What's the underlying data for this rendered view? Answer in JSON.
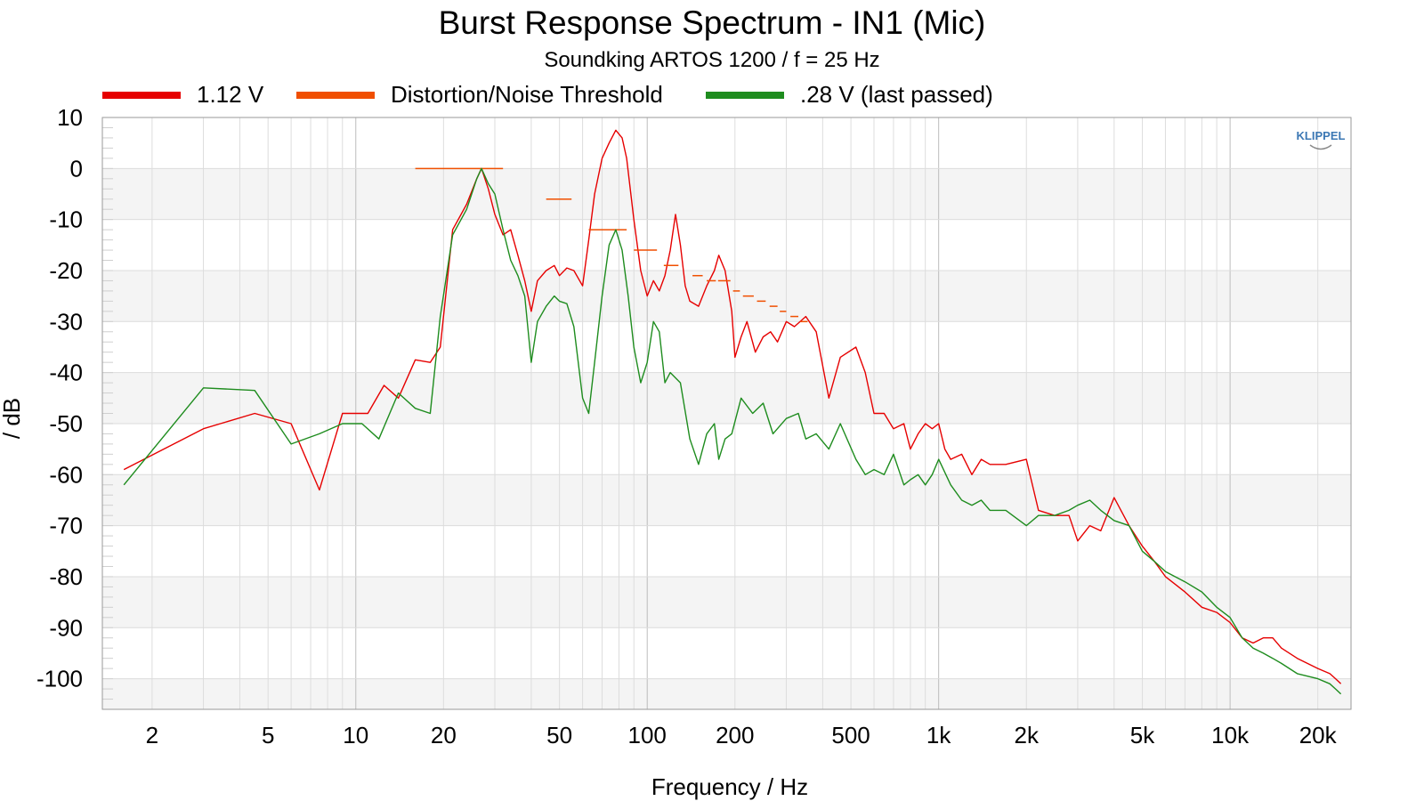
{
  "chart_data": {
    "type": "line",
    "title": "Burst Response Spectrum - IN1 (Mic)",
    "subtitle": "Soundking ARTOS 1200 / f = 25 Hz",
    "xlabel": "Frequency / Hz",
    "ylabel": "/ dB",
    "xscale": "log",
    "xlim": [
      1.35,
      26000
    ],
    "ylim": [
      -106,
      10
    ],
    "grid": true,
    "legend_position": "top",
    "logo_text": "KLIPPEL",
    "x_ticks": [
      {
        "value": 2,
        "label": "2"
      },
      {
        "value": 5,
        "label": "5"
      },
      {
        "value": 10,
        "label": "10"
      },
      {
        "value": 20,
        "label": "20"
      },
      {
        "value": 50,
        "label": "50"
      },
      {
        "value": 100,
        "label": "100"
      },
      {
        "value": 200,
        "label": "200"
      },
      {
        "value": 500,
        "label": "500"
      },
      {
        "value": 1000,
        "label": "1k"
      },
      {
        "value": 2000,
        "label": "2k"
      },
      {
        "value": 5000,
        "label": "5k"
      },
      {
        "value": 10000,
        "label": "10k"
      },
      {
        "value": 20000,
        "label": "20k"
      }
    ],
    "y_ticks": [
      {
        "value": 10,
        "label": "10"
      },
      {
        "value": 0,
        "label": "0"
      },
      {
        "value": -10,
        "label": "-10"
      },
      {
        "value": -20,
        "label": "-20"
      },
      {
        "value": -30,
        "label": "-30"
      },
      {
        "value": -40,
        "label": "-40"
      },
      {
        "value": -50,
        "label": "-50"
      },
      {
        "value": -60,
        "label": "-60"
      },
      {
        "value": -70,
        "label": "-70"
      },
      {
        "value": -80,
        "label": "-80"
      },
      {
        "value": -90,
        "label": "-90"
      },
      {
        "value": -100,
        "label": "-100"
      }
    ],
    "series": [
      {
        "name": "1.12 V",
        "color": "#e60000",
        "style": "line",
        "points": [
          [
            1.6,
            -59
          ],
          [
            3,
            -51
          ],
          [
            4.5,
            -48
          ],
          [
            6,
            -50
          ],
          [
            7.5,
            -63
          ],
          [
            9,
            -48
          ],
          [
            11,
            -48
          ],
          [
            12.5,
            -42.5
          ],
          [
            14,
            -45
          ],
          [
            16,
            -37.5
          ],
          [
            18,
            -38
          ],
          [
            19.5,
            -35
          ],
          [
            21.5,
            -12
          ],
          [
            24,
            -7
          ],
          [
            26,
            -2
          ],
          [
            27,
            0
          ],
          [
            28.5,
            -4
          ],
          [
            30,
            -9
          ],
          [
            32,
            -13
          ],
          [
            34,
            -12
          ],
          [
            36,
            -17
          ],
          [
            38,
            -22
          ],
          [
            40,
            -28
          ],
          [
            42,
            -22
          ],
          [
            45,
            -20
          ],
          [
            48,
            -19
          ],
          [
            50,
            -21
          ],
          [
            53,
            -19.5
          ],
          [
            56,
            -20
          ],
          [
            60,
            -23
          ],
          [
            63,
            -14
          ],
          [
            66,
            -5
          ],
          [
            70,
            2
          ],
          [
            74,
            5
          ],
          [
            78,
            7.5
          ],
          [
            82,
            6
          ],
          [
            85,
            2
          ],
          [
            90,
            -10
          ],
          [
            95,
            -20
          ],
          [
            100,
            -25
          ],
          [
            105,
            -22
          ],
          [
            110,
            -24
          ],
          [
            115,
            -21
          ],
          [
            120,
            -16
          ],
          [
            125,
            -9
          ],
          [
            130,
            -15
          ],
          [
            135,
            -23
          ],
          [
            140,
            -26
          ],
          [
            150,
            -27
          ],
          [
            160,
            -23
          ],
          [
            170,
            -20
          ],
          [
            176,
            -17
          ],
          [
            185,
            -20
          ],
          [
            195,
            -28
          ],
          [
            200,
            -37
          ],
          [
            210,
            -33
          ],
          [
            220,
            -30
          ],
          [
            235,
            -36
          ],
          [
            250,
            -33
          ],
          [
            265,
            -32
          ],
          [
            280,
            -34
          ],
          [
            300,
            -30
          ],
          [
            320,
            -31
          ],
          [
            350,
            -29
          ],
          [
            380,
            -32
          ],
          [
            420,
            -45
          ],
          [
            460,
            -37
          ],
          [
            520,
            -35
          ],
          [
            560,
            -40
          ],
          [
            600,
            -48
          ],
          [
            650,
            -48
          ],
          [
            700,
            -51
          ],
          [
            760,
            -50
          ],
          [
            800,
            -55
          ],
          [
            850,
            -52
          ],
          [
            900,
            -50
          ],
          [
            950,
            -51
          ],
          [
            1000,
            -50
          ],
          [
            1050,
            -55
          ],
          [
            1100,
            -57
          ],
          [
            1200,
            -56
          ],
          [
            1300,
            -60
          ],
          [
            1400,
            -57
          ],
          [
            1500,
            -58
          ],
          [
            1700,
            -58
          ],
          [
            2000,
            -57
          ],
          [
            2200,
            -67
          ],
          [
            2500,
            -68
          ],
          [
            2800,
            -68
          ],
          [
            3000,
            -73
          ],
          [
            3300,
            -70
          ],
          [
            3600,
            -71
          ],
          [
            4000,
            -64.5
          ],
          [
            4500,
            -70
          ],
          [
            5000,
            -74
          ],
          [
            5500,
            -77
          ],
          [
            6000,
            -80
          ],
          [
            7000,
            -83
          ],
          [
            8000,
            -86
          ],
          [
            9000,
            -87
          ],
          [
            10000,
            -89
          ],
          [
            11000,
            -92
          ],
          [
            12000,
            -93
          ],
          [
            13000,
            -92
          ],
          [
            14000,
            -92
          ],
          [
            15000,
            -94
          ],
          [
            17000,
            -96
          ],
          [
            20000,
            -98
          ],
          [
            22000,
            -99
          ],
          [
            23000,
            -100
          ],
          [
            24000,
            -101
          ]
        ]
      },
      {
        "name": "Distortion/Noise Threshold",
        "color": "#f04f00",
        "style": "segments",
        "segments": [
          [
            16,
            32,
            0
          ],
          [
            45,
            55,
            -6
          ],
          [
            63,
            85,
            -12
          ],
          [
            90,
            108,
            -16
          ],
          [
            114,
            128,
            -19
          ],
          [
            143,
            155,
            -21
          ],
          [
            160,
            172,
            -22
          ],
          [
            175,
            193,
            -22
          ],
          [
            197,
            208,
            -24
          ],
          [
            213,
            232,
            -25
          ],
          [
            238,
            255,
            -26
          ],
          [
            263,
            280,
            -27
          ],
          [
            285,
            300,
            -28
          ],
          [
            310,
            330,
            -29
          ],
          [
            335,
            355,
            -30
          ]
        ]
      },
      {
        "name": ".28 V (last passed)",
        "color": "#1e8c1e",
        "style": "line",
        "points": [
          [
            1.6,
            -62
          ],
          [
            3,
            -43
          ],
          [
            4.5,
            -43.5
          ],
          [
            6,
            -54
          ],
          [
            7.5,
            -52
          ],
          [
            9,
            -50
          ],
          [
            10.5,
            -50
          ],
          [
            12,
            -53
          ],
          [
            14,
            -44
          ],
          [
            16,
            -47
          ],
          [
            18,
            -48
          ],
          [
            19.5,
            -29
          ],
          [
            21.5,
            -13
          ],
          [
            24,
            -8
          ],
          [
            26,
            -2
          ],
          [
            27,
            0
          ],
          [
            28.5,
            -3
          ],
          [
            30,
            -5
          ],
          [
            32,
            -12
          ],
          [
            34,
            -18
          ],
          [
            36,
            -21
          ],
          [
            38,
            -25
          ],
          [
            40,
            -38
          ],
          [
            42,
            -30
          ],
          [
            45,
            -27
          ],
          [
            48,
            -25
          ],
          [
            50,
            -26
          ],
          [
            53,
            -26.5
          ],
          [
            56,
            -31
          ],
          [
            60,
            -45
          ],
          [
            63,
            -48
          ],
          [
            66,
            -38
          ],
          [
            70,
            -25
          ],
          [
            74,
            -15
          ],
          [
            78,
            -12
          ],
          [
            82,
            -16
          ],
          [
            86,
            -25
          ],
          [
            90,
            -35
          ],
          [
            95,
            -42
          ],
          [
            100,
            -38
          ],
          [
            105,
            -30
          ],
          [
            110,
            -32
          ],
          [
            115,
            -42
          ],
          [
            120,
            -40
          ],
          [
            130,
            -42
          ],
          [
            140,
            -53
          ],
          [
            150,
            -58
          ],
          [
            160,
            -52
          ],
          [
            170,
            -50
          ],
          [
            176,
            -57
          ],
          [
            185,
            -53
          ],
          [
            195,
            -52
          ],
          [
            210,
            -45
          ],
          [
            230,
            -48
          ],
          [
            250,
            -46
          ],
          [
            270,
            -52
          ],
          [
            300,
            -49
          ],
          [
            330,
            -48
          ],
          [
            350,
            -53
          ],
          [
            380,
            -52
          ],
          [
            420,
            -55
          ],
          [
            460,
            -50
          ],
          [
            520,
            -57
          ],
          [
            560,
            -60
          ],
          [
            600,
            -59
          ],
          [
            650,
            -60
          ],
          [
            700,
            -56
          ],
          [
            760,
            -62
          ],
          [
            800,
            -61
          ],
          [
            850,
            -60
          ],
          [
            900,
            -62
          ],
          [
            950,
            -60
          ],
          [
            1000,
            -57
          ],
          [
            1100,
            -62
          ],
          [
            1200,
            -65
          ],
          [
            1300,
            -66
          ],
          [
            1400,
            -65
          ],
          [
            1500,
            -67
          ],
          [
            1700,
            -67
          ],
          [
            2000,
            -70
          ],
          [
            2200,
            -68
          ],
          [
            2500,
            -68
          ],
          [
            2800,
            -67
          ],
          [
            3000,
            -66
          ],
          [
            3300,
            -65
          ],
          [
            3600,
            -67
          ],
          [
            4000,
            -69
          ],
          [
            4500,
            -70
          ],
          [
            5000,
            -75
          ],
          [
            5500,
            -77
          ],
          [
            6000,
            -79
          ],
          [
            7000,
            -81
          ],
          [
            8000,
            -83
          ],
          [
            9000,
            -86
          ],
          [
            10000,
            -88
          ],
          [
            11000,
            -92
          ],
          [
            12000,
            -94
          ],
          [
            13000,
            -95
          ],
          [
            14000,
            -96
          ],
          [
            15000,
            -97
          ],
          [
            17000,
            -99
          ],
          [
            20000,
            -100
          ],
          [
            22000,
            -101
          ],
          [
            23000,
            -102
          ],
          [
            24000,
            -103
          ]
        ]
      }
    ]
  }
}
